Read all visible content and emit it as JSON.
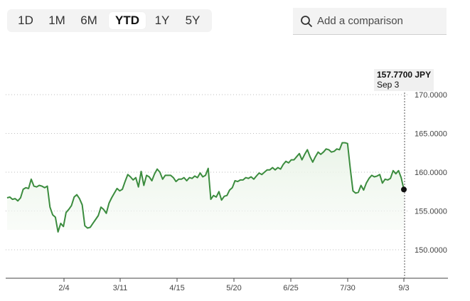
{
  "range_tabs": [
    {
      "label": "1D",
      "active": false
    },
    {
      "label": "1M",
      "active": false
    },
    {
      "label": "6M",
      "active": false
    },
    {
      "label": "YTD",
      "active": true
    },
    {
      "label": "1Y",
      "active": false
    },
    {
      "label": "5Y",
      "active": false
    }
  ],
  "compare": {
    "icon": "search-icon",
    "placeholder": "Add a comparison",
    "value": ""
  },
  "tooltip": {
    "price": "157.7700 JPY",
    "date": "Sep 3"
  },
  "colors": {
    "line": "#3b8c3e",
    "fill_top": "#e8f3e6",
    "grid": "#bdbdbd",
    "active_tab_bg": "#ffffff",
    "tab_bar_bg": "#f3f3f3"
  },
  "chart_data": {
    "type": "area",
    "currency": "JPY",
    "ylim": [
      146,
      171
    ],
    "y_ticks": [
      "170.0000",
      "165.0000",
      "160.0000",
      "155.0000",
      "150.0000"
    ],
    "y_tick_values": [
      170,
      165,
      160,
      155,
      150
    ],
    "x_ticks": [
      "2/4",
      "3/11",
      "4/15",
      "5/20",
      "6/25",
      "7/30",
      "9/3"
    ],
    "grid": true,
    "highlight": {
      "x": "9/3",
      "y": 157.77
    },
    "series": [
      {
        "values": [
          156.7,
          156.8,
          156.5,
          156.6,
          156.3,
          156.7,
          157.8,
          158.0,
          157.9,
          159.1,
          158.2,
          158.1,
          158.3,
          158.2,
          158.0,
          158.2,
          155.5,
          154.5,
          154.2,
          152.3,
          153.4,
          153.0,
          154.8,
          155.2,
          155.7,
          156.8,
          157.1,
          156.6,
          155.8,
          153.1,
          152.8,
          152.9,
          153.4,
          153.9,
          154.4,
          155.5,
          155.2,
          154.7,
          156.0,
          156.7,
          157.3,
          157.9,
          157.6,
          157.8,
          158.8,
          159.7,
          159.4,
          159.0,
          159.3,
          158.1,
          160.1,
          158.3,
          159.6,
          159.4,
          158.9,
          159.8,
          160.4,
          160.0,
          159.1,
          159.6,
          159.6,
          159.6,
          159.3,
          158.8,
          159.1,
          159.1,
          159.3,
          158.9,
          159.3,
          159.2,
          159.5,
          159.3,
          159.9,
          159.4,
          159.6,
          160.5,
          156.5,
          157.0,
          156.8,
          157.5,
          156.4,
          156.9,
          157.0,
          157.7,
          158.0,
          158.9,
          158.8,
          159.0,
          159.0,
          159.3,
          159.2,
          159.4,
          159.1,
          159.5,
          159.9,
          159.7,
          160.0,
          160.3,
          160.3,
          160.6,
          160.3,
          160.6,
          160.4,
          161.0,
          161.4,
          161.2,
          161.6,
          161.6,
          162.0,
          162.4,
          161.6,
          162.3,
          162.9,
          162.0,
          161.3,
          162.0,
          162.6,
          162.3,
          162.6,
          163.0,
          162.9,
          162.6,
          162.7,
          163.0,
          162.9,
          163.8,
          163.8,
          163.7,
          160.5,
          157.6,
          157.3,
          157.4,
          158.3,
          157.7,
          158.6,
          159.2,
          159.6,
          159.4,
          159.5,
          159.7,
          158.6,
          159.1,
          159.0,
          159.2,
          160.2,
          159.8,
          160.2,
          159.3,
          157.77
        ]
      }
    ]
  }
}
